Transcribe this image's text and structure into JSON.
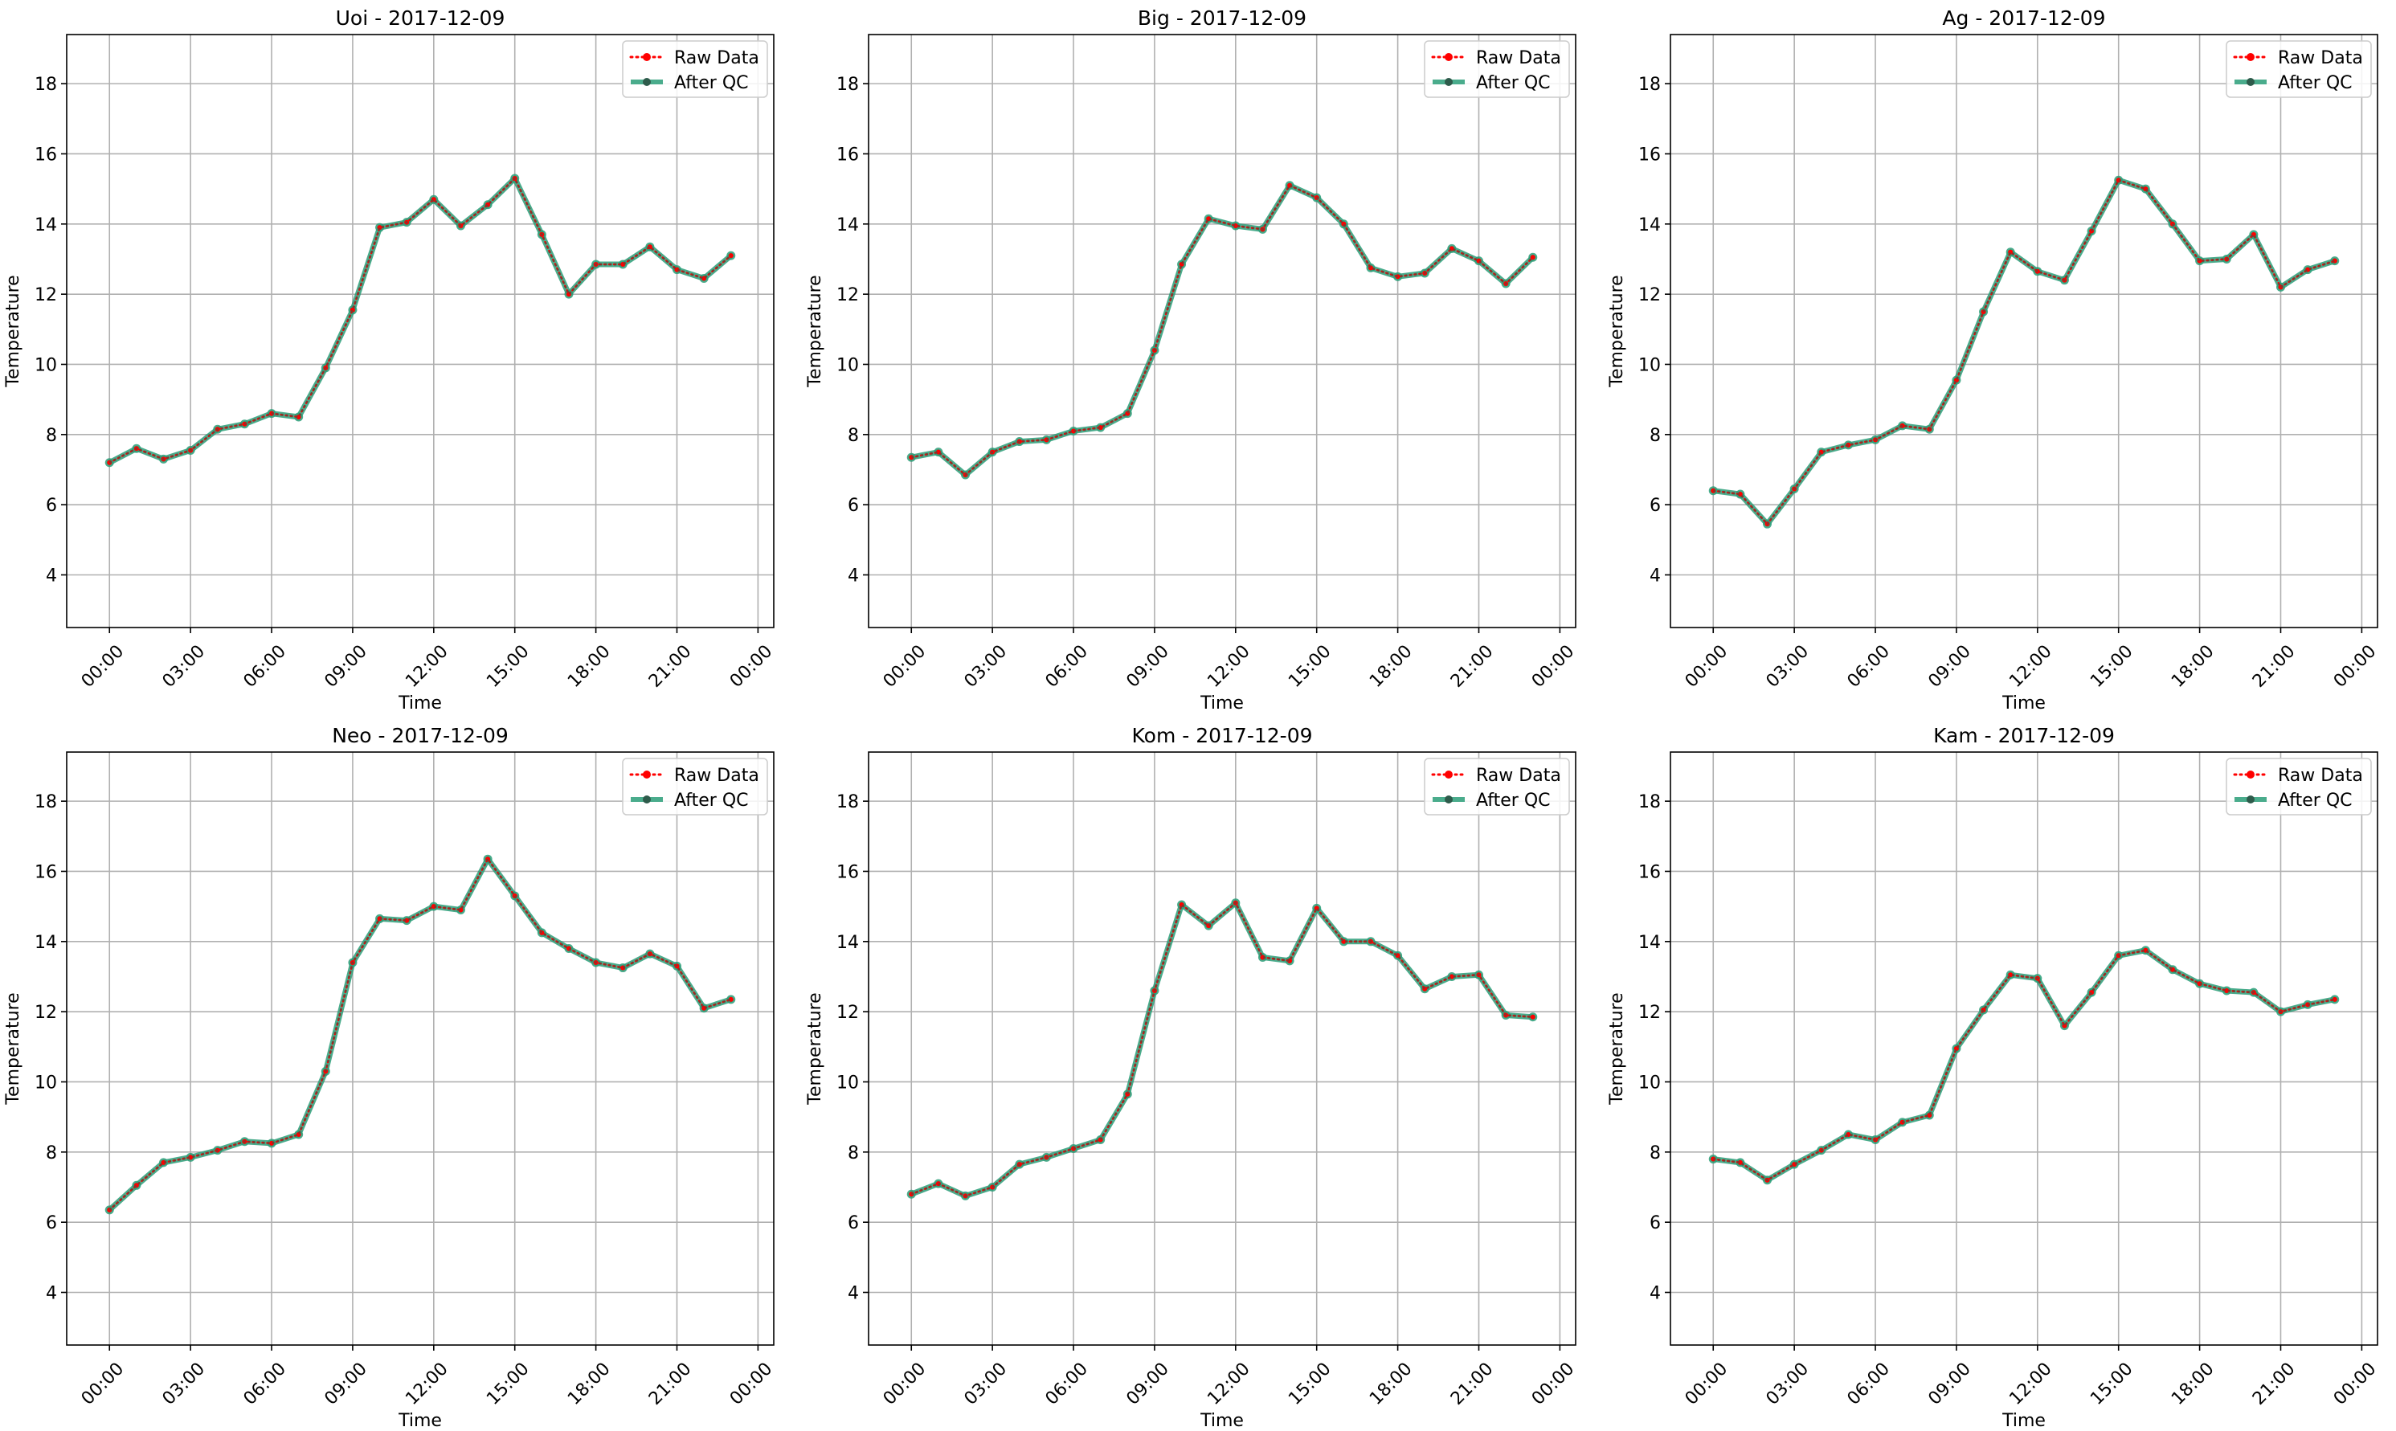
{
  "chart_data": [
    {
      "type": "line",
      "title": "Uoi - 2017-12-09",
      "xlabel": "Time",
      "ylabel": "Temperature",
      "xlim": [
        "2017-12-08 22:25",
        "2017-12-10 00:35"
      ],
      "ylim": [
        2.5,
        19.4
      ],
      "x_ticks": [
        "00:00",
        "03:00",
        "06:00",
        "09:00",
        "12:00",
        "15:00",
        "18:00",
        "21:00",
        "00:00"
      ],
      "y_ticks": [
        4,
        6,
        8,
        10,
        12,
        14,
        16,
        18
      ],
      "grid": true,
      "legend": "top-right",
      "x": [
        "00:00",
        "01:00",
        "02:00",
        "03:00",
        "04:00",
        "05:00",
        "06:00",
        "07:00",
        "08:00",
        "09:00",
        "10:00",
        "11:00",
        "12:00",
        "13:00",
        "14:00",
        "15:00",
        "16:00",
        "17:00",
        "18:00",
        "19:00",
        "20:00",
        "21:00",
        "22:00",
        "23:00"
      ],
      "series": [
        {
          "name": "Raw Data",
          "color": "#ff0000",
          "style": "dotted",
          "values": [
            7.2,
            7.6,
            7.3,
            7.55,
            8.15,
            8.3,
            8.6,
            8.5,
            9.9,
            11.55,
            13.9,
            14.05,
            14.7,
            13.95,
            14.55,
            15.3,
            13.7,
            12.0,
            12.85,
            12.85,
            13.35,
            12.7,
            12.45,
            13.1
          ]
        },
        {
          "name": "After QC",
          "color": "#2a9d78",
          "style": "solid",
          "values": [
            7.2,
            7.6,
            7.3,
            7.55,
            8.15,
            8.3,
            8.6,
            8.5,
            9.9,
            11.55,
            13.9,
            14.05,
            14.7,
            13.95,
            14.55,
            15.3,
            13.7,
            12.0,
            12.85,
            12.85,
            13.35,
            12.7,
            12.45,
            13.1
          ]
        }
      ]
    },
    {
      "type": "line",
      "title": "Big - 2017-12-09",
      "xlabel": "Time",
      "ylabel": "Temperature",
      "xlim": [
        "2017-12-08 22:25",
        "2017-12-10 00:35"
      ],
      "ylim": [
        2.5,
        19.4
      ],
      "x_ticks": [
        "00:00",
        "03:00",
        "06:00",
        "09:00",
        "12:00",
        "15:00",
        "18:00",
        "21:00",
        "00:00"
      ],
      "y_ticks": [
        4,
        6,
        8,
        10,
        12,
        14,
        16,
        18
      ],
      "grid": true,
      "legend": "top-right",
      "x": [
        "00:00",
        "01:00",
        "02:00",
        "03:00",
        "04:00",
        "05:00",
        "06:00",
        "07:00",
        "08:00",
        "09:00",
        "10:00",
        "11:00",
        "12:00",
        "13:00",
        "14:00",
        "15:00",
        "16:00",
        "17:00",
        "18:00",
        "19:00",
        "20:00",
        "21:00",
        "22:00",
        "23:00"
      ],
      "series": [
        {
          "name": "Raw Data",
          "color": "#ff0000",
          "style": "dotted",
          "values": [
            7.35,
            7.5,
            6.85,
            7.5,
            7.8,
            7.85,
            8.1,
            8.2,
            8.6,
            10.4,
            12.85,
            14.15,
            13.95,
            13.85,
            15.1,
            14.75,
            14.0,
            12.75,
            12.5,
            12.6,
            13.3,
            12.95,
            12.3,
            13.05
          ]
        },
        {
          "name": "After QC",
          "color": "#2a9d78",
          "style": "solid",
          "values": [
            7.35,
            7.5,
            6.85,
            7.5,
            7.8,
            7.85,
            8.1,
            8.2,
            8.6,
            10.4,
            12.85,
            14.15,
            13.95,
            13.85,
            15.1,
            14.75,
            14.0,
            12.75,
            12.5,
            12.6,
            13.3,
            12.95,
            12.3,
            13.05
          ]
        }
      ]
    },
    {
      "type": "line",
      "title": "Ag - 2017-12-09",
      "xlabel": "Time",
      "ylabel": "Temperature",
      "xlim": [
        "2017-12-08 22:25",
        "2017-12-10 00:35"
      ],
      "ylim": [
        2.5,
        19.4
      ],
      "x_ticks": [
        "00:00",
        "03:00",
        "06:00",
        "09:00",
        "12:00",
        "15:00",
        "18:00",
        "21:00",
        "00:00"
      ],
      "y_ticks": [
        4,
        6,
        8,
        10,
        12,
        14,
        16,
        18
      ],
      "grid": true,
      "legend": "top-right",
      "x": [
        "00:00",
        "01:00",
        "02:00",
        "03:00",
        "04:00",
        "05:00",
        "06:00",
        "07:00",
        "08:00",
        "09:00",
        "10:00",
        "11:00",
        "12:00",
        "13:00",
        "14:00",
        "15:00",
        "16:00",
        "17:00",
        "18:00",
        "19:00",
        "20:00",
        "21:00",
        "22:00",
        "23:00"
      ],
      "series": [
        {
          "name": "Raw Data",
          "color": "#ff0000",
          "style": "dotted",
          "values": [
            6.4,
            6.3,
            5.45,
            6.45,
            7.5,
            7.7,
            7.85,
            8.25,
            8.15,
            9.55,
            11.5,
            13.2,
            12.65,
            12.4,
            13.8,
            15.25,
            15.0,
            14.0,
            12.95,
            13.0,
            13.7,
            12.2,
            12.7,
            12.95
          ]
        },
        {
          "name": "After QC",
          "color": "#2a9d78",
          "style": "solid",
          "values": [
            6.4,
            6.3,
            5.45,
            6.45,
            7.5,
            7.7,
            7.85,
            8.25,
            8.15,
            9.55,
            11.5,
            13.2,
            12.65,
            12.4,
            13.8,
            15.25,
            15.0,
            14.0,
            12.95,
            13.0,
            13.7,
            12.2,
            12.7,
            12.95
          ]
        }
      ]
    },
    {
      "type": "line",
      "title": "Neo - 2017-12-09",
      "xlabel": "Time",
      "ylabel": "Temperature",
      "xlim": [
        "2017-12-08 22:25",
        "2017-12-10 00:35"
      ],
      "ylim": [
        2.5,
        19.4
      ],
      "x_ticks": [
        "00:00",
        "03:00",
        "06:00",
        "09:00",
        "12:00",
        "15:00",
        "18:00",
        "21:00",
        "00:00"
      ],
      "y_ticks": [
        4,
        6,
        8,
        10,
        12,
        14,
        16,
        18
      ],
      "grid": true,
      "legend": "top-right",
      "x": [
        "00:00",
        "01:00",
        "02:00",
        "03:00",
        "04:00",
        "05:00",
        "06:00",
        "07:00",
        "08:00",
        "09:00",
        "10:00",
        "11:00",
        "12:00",
        "13:00",
        "14:00",
        "15:00",
        "16:00",
        "17:00",
        "18:00",
        "19:00",
        "20:00",
        "21:00",
        "22:00",
        "23:00"
      ],
      "series": [
        {
          "name": "Raw Data",
          "color": "#ff0000",
          "style": "dotted",
          "values": [
            6.35,
            7.05,
            7.7,
            7.85,
            8.05,
            8.3,
            8.25,
            8.5,
            10.3,
            13.4,
            14.65,
            14.6,
            15.0,
            14.9,
            16.35,
            15.3,
            14.25,
            13.8,
            13.4,
            13.25,
            13.65,
            13.3,
            12.1,
            12.35
          ]
        },
        {
          "name": "After QC",
          "color": "#2a9d78",
          "style": "solid",
          "values": [
            6.35,
            7.05,
            7.7,
            7.85,
            8.05,
            8.3,
            8.25,
            8.5,
            10.3,
            13.4,
            14.65,
            14.6,
            15.0,
            14.9,
            16.35,
            15.3,
            14.25,
            13.8,
            13.4,
            13.25,
            13.65,
            13.3,
            12.1,
            12.35
          ]
        }
      ]
    },
    {
      "type": "line",
      "title": "Kom - 2017-12-09",
      "xlabel": "Time",
      "ylabel": "Temperature",
      "xlim": [
        "2017-12-08 22:25",
        "2017-12-10 00:35"
      ],
      "ylim": [
        2.5,
        19.4
      ],
      "x_ticks": [
        "00:00",
        "03:00",
        "06:00",
        "09:00",
        "12:00",
        "15:00",
        "18:00",
        "21:00",
        "00:00"
      ],
      "y_ticks": [
        4,
        6,
        8,
        10,
        12,
        14,
        16,
        18
      ],
      "grid": true,
      "legend": "top-right",
      "x": [
        "00:00",
        "01:00",
        "02:00",
        "03:00",
        "04:00",
        "05:00",
        "06:00",
        "07:00",
        "08:00",
        "09:00",
        "10:00",
        "11:00",
        "12:00",
        "13:00",
        "14:00",
        "15:00",
        "16:00",
        "17:00",
        "18:00",
        "19:00",
        "20:00",
        "21:00",
        "22:00",
        "23:00"
      ],
      "series": [
        {
          "name": "Raw Data",
          "color": "#ff0000",
          "style": "dotted",
          "values": [
            6.8,
            7.1,
            6.75,
            7.0,
            7.65,
            7.85,
            8.1,
            8.35,
            9.65,
            12.6,
            15.05,
            14.45,
            15.1,
            13.55,
            13.45,
            14.95,
            14.0,
            14.0,
            13.6,
            12.65,
            13.0,
            13.05,
            11.9,
            11.85
          ]
        },
        {
          "name": "After QC",
          "color": "#2a9d78",
          "style": "solid",
          "values": [
            6.8,
            7.1,
            6.75,
            7.0,
            7.65,
            7.85,
            8.1,
            8.35,
            9.65,
            12.6,
            15.05,
            14.45,
            15.1,
            13.55,
            13.45,
            14.95,
            14.0,
            14.0,
            13.6,
            12.65,
            13.0,
            13.05,
            11.9,
            11.85
          ]
        }
      ]
    },
    {
      "type": "line",
      "title": "Kam - 2017-12-09",
      "xlabel": "Time",
      "ylabel": "Temperature",
      "xlim": [
        "2017-12-08 22:25",
        "2017-12-10 00:35"
      ],
      "ylim": [
        2.5,
        19.4
      ],
      "x_ticks": [
        "00:00",
        "03:00",
        "06:00",
        "09:00",
        "12:00",
        "15:00",
        "18:00",
        "21:00",
        "00:00"
      ],
      "y_ticks": [
        4,
        6,
        8,
        10,
        12,
        14,
        16,
        18
      ],
      "grid": true,
      "legend": "top-right",
      "x": [
        "00:00",
        "01:00",
        "02:00",
        "03:00",
        "04:00",
        "05:00",
        "06:00",
        "07:00",
        "08:00",
        "09:00",
        "10:00",
        "11:00",
        "12:00",
        "13:00",
        "14:00",
        "15:00",
        "16:00",
        "17:00",
        "18:00",
        "19:00",
        "20:00",
        "21:00",
        "22:00",
        "23:00"
      ],
      "series": [
        {
          "name": "Raw Data",
          "color": "#ff0000",
          "style": "dotted",
          "values": [
            7.8,
            7.7,
            7.2,
            7.65,
            8.05,
            8.5,
            8.35,
            8.85,
            9.05,
            10.95,
            12.05,
            13.05,
            12.95,
            11.6,
            12.55,
            13.6,
            13.75,
            13.2,
            12.8,
            12.6,
            12.55,
            12.0,
            12.2,
            12.35
          ]
        },
        {
          "name": "After QC",
          "color": "#2a9d78",
          "style": "solid",
          "values": [
            7.8,
            7.7,
            7.2,
            7.65,
            8.05,
            8.5,
            8.35,
            8.85,
            9.05,
            10.95,
            12.05,
            13.05,
            12.95,
            11.6,
            12.55,
            13.6,
            13.75,
            13.2,
            12.8,
            12.6,
            12.55,
            12.0,
            12.2,
            12.35
          ]
        }
      ]
    }
  ]
}
